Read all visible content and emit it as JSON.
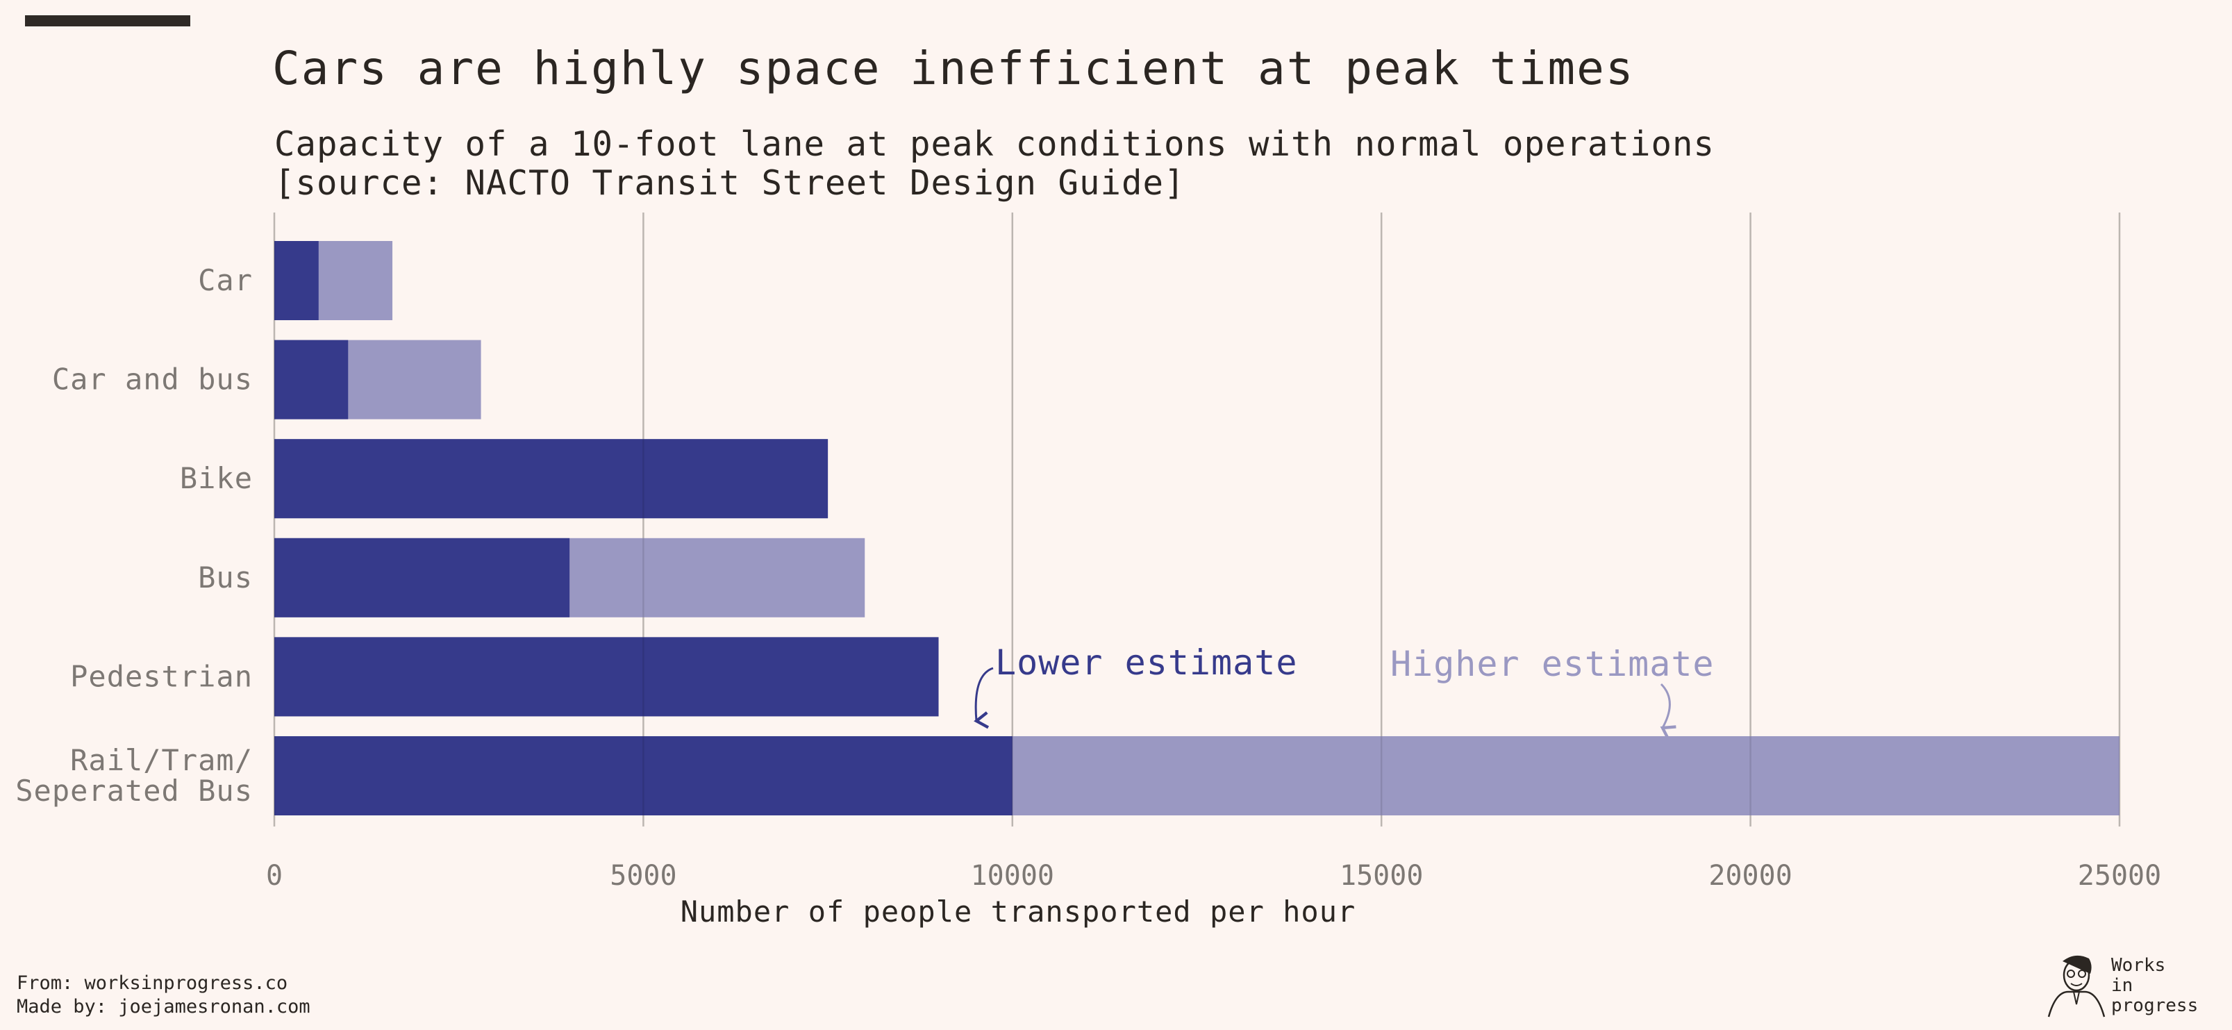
{
  "title": "Cars are highly space inefficient at peak times",
  "subtitle_line1": "Capacity of a 10-foot lane at peak conditions with normal operations",
  "subtitle_line2": "[source: NACTO Transit Street Design Guide]",
  "footer": {
    "from": "From: worksinprogress.co",
    "made_by": "Made by: joejamesronan.com"
  },
  "brand": {
    "line1": "Works",
    "line2": "in",
    "line3": "progress"
  },
  "colors": {
    "lower": "#363a8b",
    "higher": "#9a98c2",
    "background": "#fdf5f1",
    "grid": "#d2cbc6",
    "tick_text": "#7d7874",
    "category_text": "#7d7874",
    "axis_title": "#2b2622"
  },
  "chart_data": {
    "type": "bar",
    "orientation": "horizontal",
    "categories": [
      [
        "Car"
      ],
      [
        "Car and bus"
      ],
      [
        "Bike"
      ],
      [
        "Bus"
      ],
      [
        "Pedestrian"
      ],
      [
        "Rail/Tram/",
        "Seperated Bus"
      ]
    ],
    "series": [
      {
        "name": "Lower estimate",
        "values": [
          600,
          1000,
          7500,
          4000,
          9000,
          10000
        ]
      },
      {
        "name": "Higher estimate",
        "values": [
          1600,
          2800,
          7500,
          8000,
          9000,
          25000
        ]
      }
    ],
    "xlabel": "Number of people transported per hour",
    "xlim": [
      0,
      25000
    ],
    "xticks": [
      0,
      5000,
      10000,
      15000,
      20000,
      25000
    ],
    "grid": "vertical",
    "annotations": [
      {
        "text": "Lower estimate",
        "series": "Lower estimate"
      },
      {
        "text": "Higher estimate",
        "series": "Higher estimate"
      }
    ]
  }
}
